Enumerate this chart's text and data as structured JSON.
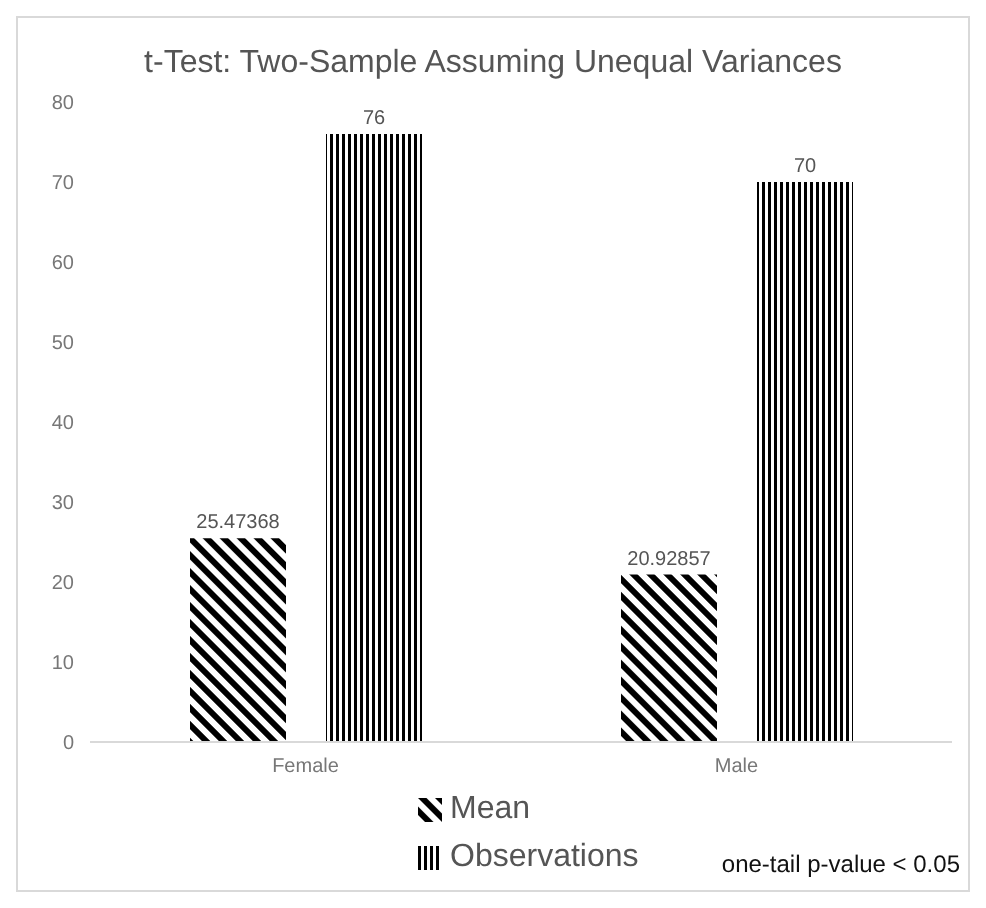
{
  "chart_data": {
    "type": "bar",
    "title": "t-Test: Two-Sample Assuming Unequal Variances",
    "categories": [
      "Female",
      "Male"
    ],
    "series": [
      {
        "name": "Mean",
        "color": "#000000",
        "values": [
          25.47368,
          20.92857
        ]
      },
      {
        "name": "Observations",
        "color": "#000000",
        "values": [
          76,
          70
        ]
      }
    ],
    "ylim": [
      0,
      80
    ],
    "yticks": [
      0,
      10,
      20,
      30,
      40,
      50,
      60,
      70,
      80
    ],
    "grid": false,
    "legend": "bottom",
    "data_labels": true,
    "annotations": [
      "one-tail p-value < 0.05"
    ]
  }
}
